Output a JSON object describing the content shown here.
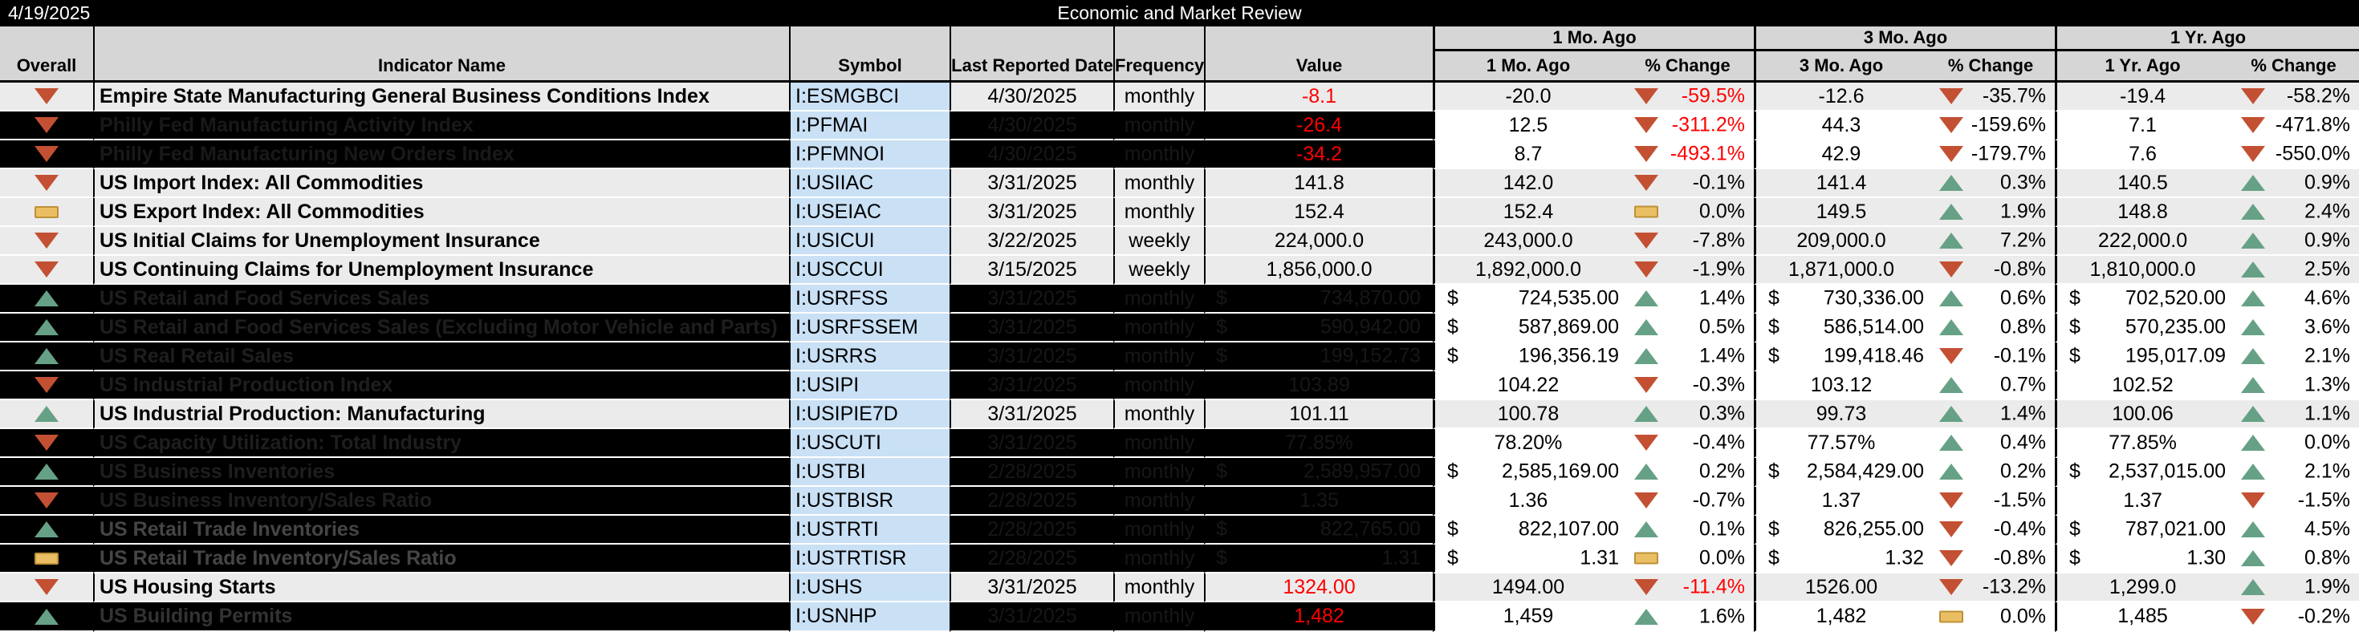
{
  "topbar": {
    "report_date": "4/19/2025",
    "title": "Economic and Market Review"
  },
  "groups": [
    "1 Mo. Ago",
    "3 Mo. Ago",
    "1 Yr. Ago"
  ],
  "columns": [
    "Overall",
    "Indicator Name",
    "Symbol",
    "Last Reported Date",
    "Frequency",
    "Value",
    "1 Mo. Ago",
    "% Change",
    "3 Mo. Ago",
    "% Change",
    "1 Yr. Ago",
    "% Change"
  ],
  "colors": {
    "down_triangle": "#c35033",
    "up_triangle": "#66a186",
    "flat_fill": "#eabf63",
    "flat_border": "#bd9136",
    "alert_red": "#fe0000",
    "symbol_bg": "#c9e0f5",
    "light_row": "#ebebeb",
    "header_bg": "#d6d6d6"
  },
  "rows": [
    {
      "style": "light",
      "overall": "down",
      "name": "Empire State Manufacturing General Business Conditions Index",
      "symbol": "I:ESMGBCI",
      "date": "4/30/2025",
      "freq": "monthly",
      "value": "-8.1",
      "value_style": "red",
      "m1": {
        "v": "-20.0",
        "dir": "down",
        "pct": "-59.5%",
        "red": true
      },
      "m3": {
        "v": "-12.6",
        "dir": "down",
        "pct": "-35.7%"
      },
      "y1": {
        "v": "-19.4",
        "dir": "down",
        "pct": "-58.2%"
      }
    },
    {
      "style": "dark",
      "overall": "down",
      "name": "Philly Fed Manufacturing Activity Index",
      "shade": "#191919",
      "symbol": "I:PFMAI",
      "date": "4/30/2025",
      "freq": "monthly",
      "value": "-26.4",
      "value_style": "red",
      "m1": {
        "v": "12.5",
        "dir": "down",
        "pct": "-311.2%",
        "red": true
      },
      "m3": {
        "v": "44.3",
        "dir": "down",
        "pct": "-159.6%"
      },
      "y1": {
        "v": "7.1",
        "dir": "down",
        "pct": "-471.8%"
      }
    },
    {
      "style": "dark",
      "overall": "down",
      "name": "Philly Fed Manufacturing New Orders Index",
      "shade": "#191919",
      "symbol": "I:PFMNOI",
      "date": "4/30/2025",
      "freq": "monthly",
      "value": "-34.2",
      "value_style": "red",
      "m1": {
        "v": "8.7",
        "dir": "down",
        "pct": "-493.1%",
        "red": true
      },
      "m3": {
        "v": "42.9",
        "dir": "down",
        "pct": "-179.7%"
      },
      "y1": {
        "v": "7.6",
        "dir": "down",
        "pct": "-550.0%"
      }
    },
    {
      "style": "light",
      "overall": "down",
      "name": "US Import Index: All Commodities",
      "symbol": "I:USIIAC",
      "date": "3/31/2025",
      "freq": "monthly",
      "value": "141.8",
      "value_style": "norm",
      "m1": {
        "v": "142.0",
        "dir": "down",
        "pct": "-0.1%"
      },
      "m3": {
        "v": "141.4",
        "dir": "up",
        "pct": "0.3%"
      },
      "y1": {
        "v": "140.5",
        "dir": "up",
        "pct": "0.9%"
      }
    },
    {
      "style": "light",
      "overall": "flat",
      "name": "US Export Index: All Commodities",
      "symbol": "I:USEIAC",
      "date": "3/31/2025",
      "freq": "monthly",
      "value": "152.4",
      "value_style": "norm",
      "m1": {
        "v": "152.4",
        "dir": "flat",
        "pct": "0.0%"
      },
      "m3": {
        "v": "149.5",
        "dir": "up",
        "pct": "1.9%"
      },
      "y1": {
        "v": "148.8",
        "dir": "up",
        "pct": "2.4%"
      }
    },
    {
      "style": "light",
      "overall": "down",
      "name": "US Initial Claims for Unemployment Insurance",
      "symbol": "I:USICUI",
      "date": "3/22/2025",
      "freq": "weekly",
      "value": "224,000.0",
      "value_style": "norm",
      "m1": {
        "v": "243,000.0",
        "dir": "down",
        "pct": "-7.8%"
      },
      "m3": {
        "v": "209,000.0",
        "dir": "up",
        "pct": "7.2%"
      },
      "y1": {
        "v": "222,000.0",
        "dir": "up",
        "pct": "0.9%"
      }
    },
    {
      "style": "light",
      "overall": "down",
      "name": "US Continuing Claims for Unemployment Insurance",
      "symbol": "I:USCCUI",
      "date": "3/15/2025",
      "freq": "weekly",
      "value": "1,856,000.0",
      "value_style": "norm",
      "m1": {
        "v": "1,892,000.0",
        "dir": "down",
        "pct": "-1.9%"
      },
      "m3": {
        "v": "1,871,000.0",
        "dir": "down",
        "pct": "-0.8%"
      },
      "y1": {
        "v": "1,810,000.0",
        "dir": "up",
        "pct": "2.5%"
      }
    },
    {
      "style": "dark",
      "overall": "up",
      "name": "US Retail and Food Services Sales",
      "shade": "#1e1e1e",
      "symbol": "I:USRFSS",
      "date": "3/31/2025",
      "freq": "monthly",
      "value": "$ 734,870.00",
      "value_style": "hidden",
      "m1": {
        "v": "$ 724,535.00",
        "dir": "up",
        "pct": "1.4%"
      },
      "m3": {
        "v": "$ 730,336.00",
        "dir": "up",
        "pct": "0.6%"
      },
      "y1": {
        "v": "$ 702,520.00",
        "dir": "up",
        "pct": "4.6%"
      }
    },
    {
      "style": "dark",
      "overall": "up",
      "name": "US Retail and Food Services Sales (Excluding Motor Vehicle and Parts)",
      "shade": "#1e1e1e",
      "symbol": "I:USRFSSEM",
      "date": "3/31/2025",
      "freq": "monthly",
      "value": "$ 590,942.00",
      "value_style": "hidden",
      "m1": {
        "v": "$ 587,869.00",
        "dir": "up",
        "pct": "0.5%"
      },
      "m3": {
        "v": "$ 586,514.00",
        "dir": "up",
        "pct": "0.8%"
      },
      "y1": {
        "v": "$ 570,235.00",
        "dir": "up",
        "pct": "3.6%"
      }
    },
    {
      "style": "dark",
      "overall": "up",
      "name": "US Real Retail Sales",
      "shade": "#1e1e1e",
      "symbol": "I:USRRS",
      "date": "3/31/2025",
      "freq": "monthly",
      "value": "$ 199,152.73",
      "value_style": "hidden",
      "m1": {
        "v": "$ 196,356.19",
        "dir": "up",
        "pct": "1.4%"
      },
      "m3": {
        "v": "$ 199,418.46",
        "dir": "down",
        "pct": "-0.1%"
      },
      "y1": {
        "v": "$ 195,017.09",
        "dir": "up",
        "pct": "2.1%"
      }
    },
    {
      "style": "dark",
      "overall": "down",
      "name": "US Industrial Production Index",
      "shade": "#1e1e1e",
      "symbol": "I:USIPI",
      "date": "3/31/2025",
      "freq": "monthly",
      "value": "103.89",
      "value_style": "hidden",
      "m1": {
        "v": "104.22",
        "dir": "down",
        "pct": "-0.3%"
      },
      "m3": {
        "v": "103.12",
        "dir": "up",
        "pct": "0.7%"
      },
      "y1": {
        "v": "102.52",
        "dir": "up",
        "pct": "1.3%"
      }
    },
    {
      "style": "light",
      "overall": "up",
      "name": "US Industrial Production: Manufacturing",
      "symbol": "I:USIPIE7D",
      "date": "3/31/2025",
      "freq": "monthly",
      "value": "101.11",
      "value_style": "norm",
      "m1": {
        "v": "100.78",
        "dir": "up",
        "pct": "0.3%"
      },
      "m3": {
        "v": "99.73",
        "dir": "up",
        "pct": "1.4%"
      },
      "y1": {
        "v": "100.06",
        "dir": "up",
        "pct": "1.1%"
      }
    },
    {
      "style": "dark",
      "overall": "down",
      "name": "US Capacity Utilization: Total Industry",
      "shade": "#1e1e1e",
      "symbol": "I:USCUTI",
      "date": "3/31/2025",
      "freq": "monthly",
      "value": "77.85%",
      "value_style": "hidden",
      "m1": {
        "v": "78.20%",
        "dir": "down",
        "pct": "-0.4%"
      },
      "m3": {
        "v": "77.57%",
        "dir": "up",
        "pct": "0.4%"
      },
      "y1": {
        "v": "77.85%",
        "dir": "up",
        "pct": "0.0%"
      }
    },
    {
      "style": "dark",
      "overall": "up",
      "name": "US Business Inventories",
      "shade": "#1e1e1e",
      "symbol": "I:USTBI",
      "date": "2/28/2025",
      "freq": "monthly",
      "value": "$ 2,589,957.00",
      "value_style": "hidden",
      "m1": {
        "v": "$ 2,585,169.00",
        "dir": "up",
        "pct": "0.2%"
      },
      "m3": {
        "v": "$ 2,584,429.00",
        "dir": "up",
        "pct": "0.2%"
      },
      "y1": {
        "v": "$ 2,537,015.00",
        "dir": "up",
        "pct": "2.1%"
      }
    },
    {
      "style": "dark",
      "overall": "down",
      "name": "US Business Inventory/Sales Ratio",
      "shade": "#1e1e1e",
      "symbol": "I:USTBISR",
      "date": "2/28/2025",
      "freq": "monthly",
      "value": "1.35",
      "value_style": "hidden",
      "m1": {
        "v": "1.36",
        "dir": "down",
        "pct": "-0.7%"
      },
      "m3": {
        "v": "1.37",
        "dir": "down",
        "pct": "-1.5%"
      },
      "y1": {
        "v": "1.37",
        "dir": "down",
        "pct": "-1.5%"
      }
    },
    {
      "style": "dark",
      "overall": "up",
      "name": "US Retail Trade Inventories",
      "shade": "#454545",
      "symbol": "I:USTRTI",
      "date": "2/28/2025",
      "freq": "monthly",
      "value": "$ 822,765.00",
      "value_style": "hidden",
      "m1": {
        "v": "$ 822,107.00",
        "dir": "up",
        "pct": "0.1%"
      },
      "m3": {
        "v": "$ 826,255.00",
        "dir": "down",
        "pct": "-0.4%"
      },
      "y1": {
        "v": "$ 787,021.00",
        "dir": "up",
        "pct": "4.5%"
      }
    },
    {
      "style": "dark",
      "overall": "flat",
      "name": "US Retail Trade Inventory/Sales Ratio",
      "shade": "#454545",
      "symbol": "I:USTRTISR",
      "date": "2/28/2025",
      "freq": "monthly",
      "value": "$ 1.31",
      "value_style": "hidden",
      "m1": {
        "v": "$ 1.31",
        "dir": "flat",
        "pct": "0.0%"
      },
      "m3": {
        "v": "$ 1.32",
        "dir": "down",
        "pct": "-0.8%"
      },
      "y1": {
        "v": "$ 1.30",
        "dir": "up",
        "pct": "0.8%"
      }
    },
    {
      "style": "light",
      "overall": "down",
      "name": "US Housing Starts",
      "symbol": "I:USHS",
      "date": "3/31/2025",
      "freq": "monthly",
      "value": "1324.00",
      "value_style": "red",
      "m1": {
        "v": "1494.00",
        "dir": "down",
        "pct": "-11.4%",
        "red": true
      },
      "m3": {
        "v": "1526.00",
        "dir": "down",
        "pct": "-13.2%"
      },
      "y1": {
        "v": "1,299.0",
        "dir": "up",
        "pct": "1.9%"
      }
    },
    {
      "style": "dark",
      "overall": "up",
      "name": "US Building Permits",
      "shade": "#333333",
      "symbol": "I:USNHP",
      "date": "3/31/2025",
      "freq": "monthly",
      "value": "1,482",
      "value_style": "red",
      "m1": {
        "v": "1,459",
        "dir": "up",
        "pct": "1.6%"
      },
      "m3": {
        "v": "1,482",
        "dir": "flat",
        "pct": "0.0%"
      },
      "y1": {
        "v": "1,485",
        "dir": "down",
        "pct": "-0.2%"
      }
    }
  ]
}
